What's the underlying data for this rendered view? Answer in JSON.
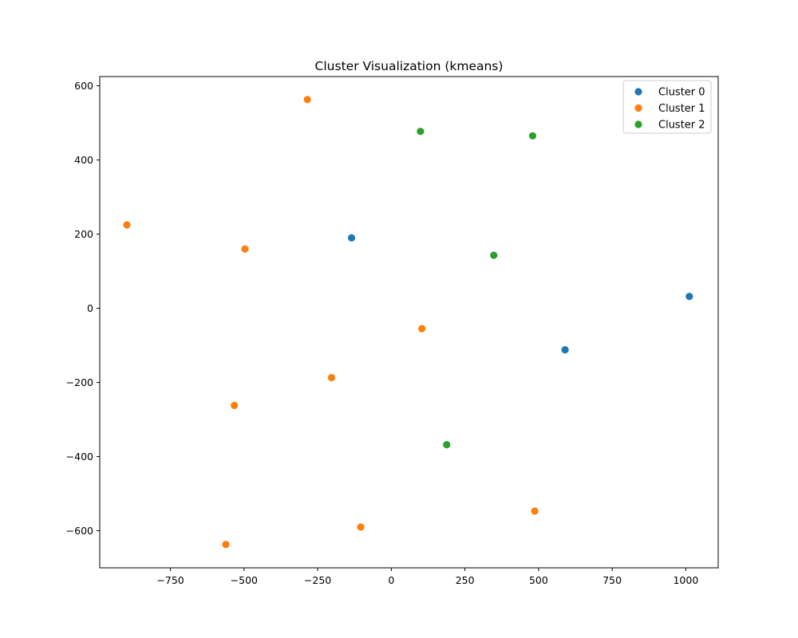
{
  "chart_data": {
    "type": "scatter",
    "title": "Cluster Visualization (kmeans)",
    "xlabel": "",
    "ylabel": "",
    "xlim": [
      -990,
      1110
    ],
    "ylim": [
      -700,
      625
    ],
    "xticks": [
      -750,
      -500,
      -250,
      0,
      250,
      500,
      750,
      1000
    ],
    "yticks": [
      -600,
      -400,
      -200,
      0,
      200,
      400,
      600
    ],
    "xtick_labels": [
      "−750",
      "−500",
      "−250",
      "0",
      "250",
      "500",
      "750",
      "1000"
    ],
    "ytick_labels": [
      "−600",
      "−400",
      "−200",
      "0",
      "200",
      "400",
      "600"
    ],
    "grid": false,
    "legend_position": "top-right",
    "series": [
      {
        "name": "Cluster 0",
        "color": "#1f77b4",
        "points": [
          [
            -135,
            190
          ],
          [
            590,
            -112
          ],
          [
            1012,
            32
          ]
        ]
      },
      {
        "name": "Cluster 1",
        "color": "#ff7f0e",
        "points": [
          [
            -285,
            563
          ],
          [
            -898,
            225
          ],
          [
            -497,
            160
          ],
          [
            104,
            -55
          ],
          [
            -203,
            -187
          ],
          [
            -533,
            -262
          ],
          [
            487,
            -547
          ],
          [
            -104,
            -590
          ],
          [
            -562,
            -637
          ]
        ]
      },
      {
        "name": "Cluster 2",
        "color": "#2ca02c",
        "points": [
          [
            99,
            477
          ],
          [
            480,
            465
          ],
          [
            348,
            143
          ],
          [
            188,
            -368
          ]
        ]
      }
    ]
  }
}
